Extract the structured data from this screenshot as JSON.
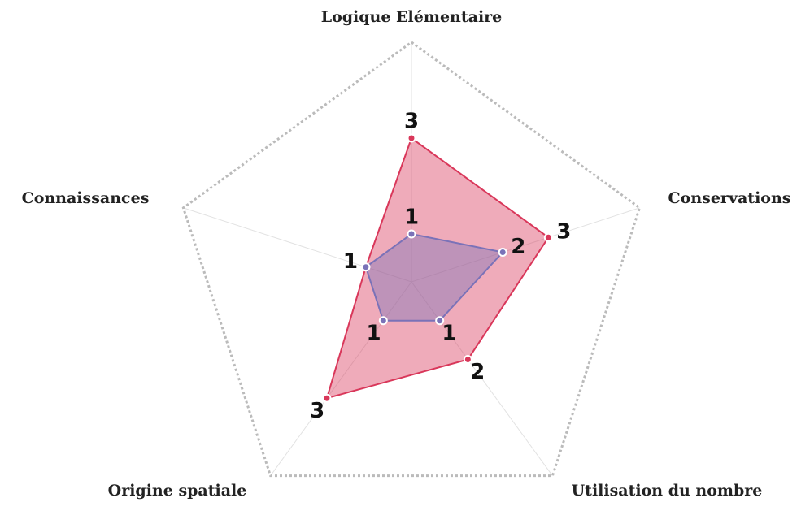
{
  "chart_data": {
    "type": "radar",
    "categories": [
      "Logique Elémentaire",
      "Conservations",
      "Utilisation du nombre",
      "Origine spatiale",
      "Connaissances"
    ],
    "rlim": [
      0,
      5
    ],
    "series": [
      {
        "color": "#d9375a",
        "values": [
          3,
          3,
          2,
          3,
          1
        ]
      },
      {
        "color": "#7a72b8",
        "values": [
          1,
          2,
          1,
          1,
          1
        ]
      }
    ]
  }
}
